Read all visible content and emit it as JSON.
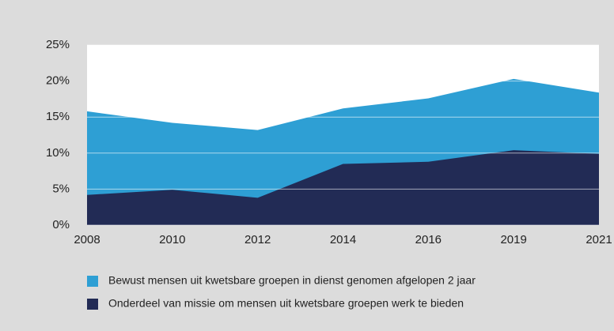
{
  "chart_data": {
    "type": "area",
    "categories": [
      "2008",
      "2010",
      "2012",
      "2014",
      "2016",
      "2019",
      "2021"
    ],
    "series": [
      {
        "name": "Bewust mensen uit kwetsbare groepen in dienst genomen afgelopen 2 jaar",
        "color": "#2e9fd4",
        "values": [
          15.8,
          14.2,
          13.2,
          16.2,
          17.6,
          20.3,
          18.4
        ]
      },
      {
        "name": "Onderdeel van missie om mensen uit kwetsbare groepen werk te bieden",
        "color": "#222b55",
        "values": [
          4.2,
          4.9,
          3.8,
          8.5,
          8.8,
          10.4,
          9.9
        ]
      }
    ],
    "ylim": [
      0,
      25
    ],
    "yticks": [
      {
        "value": 0,
        "label": "0%"
      },
      {
        "value": 5,
        "label": "5%"
      },
      {
        "value": 10,
        "label": "10%"
      },
      {
        "value": 15,
        "label": "15%"
      },
      {
        "value": 20,
        "label": "20%"
      },
      {
        "value": 25,
        "label": "25%"
      }
    ],
    "grid": true
  }
}
